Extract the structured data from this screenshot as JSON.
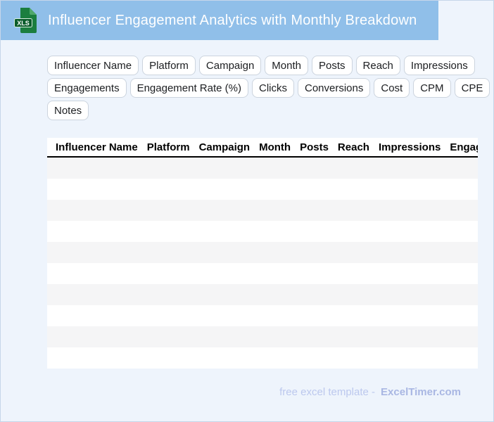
{
  "header": {
    "title": "Influencer Engagement Analytics with Monthly Breakdown",
    "file_icon_label": "XLS"
  },
  "column_chips": {
    "rows": [
      [
        "Influencer Name",
        "Platform",
        "Campaign",
        "Month",
        "Posts",
        "Reach",
        "Impressions"
      ],
      [
        "Engagements",
        "Engagement Rate (%)",
        "Clicks",
        "Conversions",
        "Cost",
        "CPM",
        "CPE"
      ],
      [
        "Notes"
      ]
    ]
  },
  "table": {
    "columns": [
      "Influencer Name",
      "Platform",
      "Campaign",
      "Month",
      "Posts",
      "Reach",
      "Impressions",
      "Engagements",
      "Engagement Rate (%)",
      "Clicks",
      "Conversions",
      "Cost",
      "CPM",
      "CPE",
      "Notes"
    ],
    "empty_row_count": 10
  },
  "footer": {
    "text": "free excel template -",
    "brand": "ExcelTimer.com"
  },
  "colors": {
    "header_bg": "#90bfe9",
    "page_bg": "#eef4fc",
    "icon_green": "#1b7e3f",
    "icon_fold_green": "#4fa86c",
    "icon_badge_green": "#0b5c2b",
    "row_stripe": "#f5f5f6",
    "header_underline": "#000000",
    "footer_text": "#bcc8ee",
    "footer_brand": "#a9b7e3"
  }
}
